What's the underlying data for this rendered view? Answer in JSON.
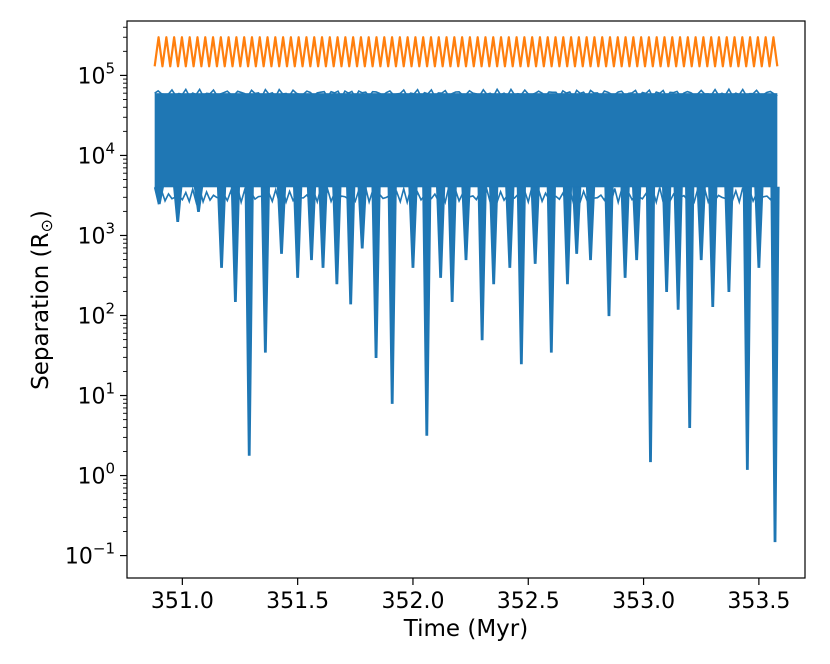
{
  "chart_data": {
    "type": "line",
    "title": "",
    "xlabel": "Time (Myr)",
    "ylabel": "Separation (R",
    "ylabel_symbol": "⊙",
    "ylabel_close": ")",
    "xlim": [
      350.76,
      353.7
    ],
    "ylim_log10": [
      -1.28,
      5.68
    ],
    "yscale": "log",
    "grid": false,
    "x_ticks": [
      351.0,
      351.5,
      352.0,
      352.5,
      353.0,
      353.5
    ],
    "x_tick_labels": [
      "351.0",
      "351.5",
      "352.0",
      "352.5",
      "353.0",
      "353.5"
    ],
    "y_tick_exponents": [
      -1,
      0,
      1,
      2,
      3,
      4,
      5
    ],
    "y_tick_base": "10",
    "y_tick_superscripts": [
      "−1",
      "0",
      "1",
      "2",
      "3",
      "4",
      "5"
    ],
    "x_range": [
      350.88,
      353.58
    ],
    "series": [
      {
        "color": "#ff7f0e",
        "kind": "band",
        "y_min": 130000,
        "y_max": 300000,
        "oscillations": 80
      },
      {
        "color": "#1f77b4",
        "kind": "band",
        "y_min": 4000,
        "y_max": 60000,
        "spikes_x": [
          350.9,
          350.98,
          351.07,
          351.17,
          351.23,
          351.29,
          351.36,
          351.43,
          351.5,
          351.56,
          351.61,
          351.67,
          351.73,
          351.78,
          351.84,
          351.91,
          352.0,
          352.06,
          352.12,
          352.17,
          352.23,
          352.3,
          352.35,
          352.42,
          352.47,
          352.53,
          352.6,
          352.67,
          352.71,
          352.77,
          352.85,
          352.92,
          352.97,
          353.03,
          353.1,
          353.15,
          353.2,
          353.25,
          353.3,
          353.37,
          353.45,
          353.5,
          353.57
        ],
        "spikes_min": [
          2500,
          1500,
          2000,
          400,
          150,
          1.8,
          35,
          600,
          300,
          500,
          400,
          250,
          140,
          700,
          30,
          8,
          400,
          3.2,
          300,
          150,
          500,
          50,
          250,
          400,
          25,
          450,
          35,
          250,
          600,
          500,
          100,
          300,
          500,
          1.5,
          200,
          120,
          4,
          500,
          130,
          200,
          1.2,
          400,
          0.15
        ]
      }
    ]
  }
}
